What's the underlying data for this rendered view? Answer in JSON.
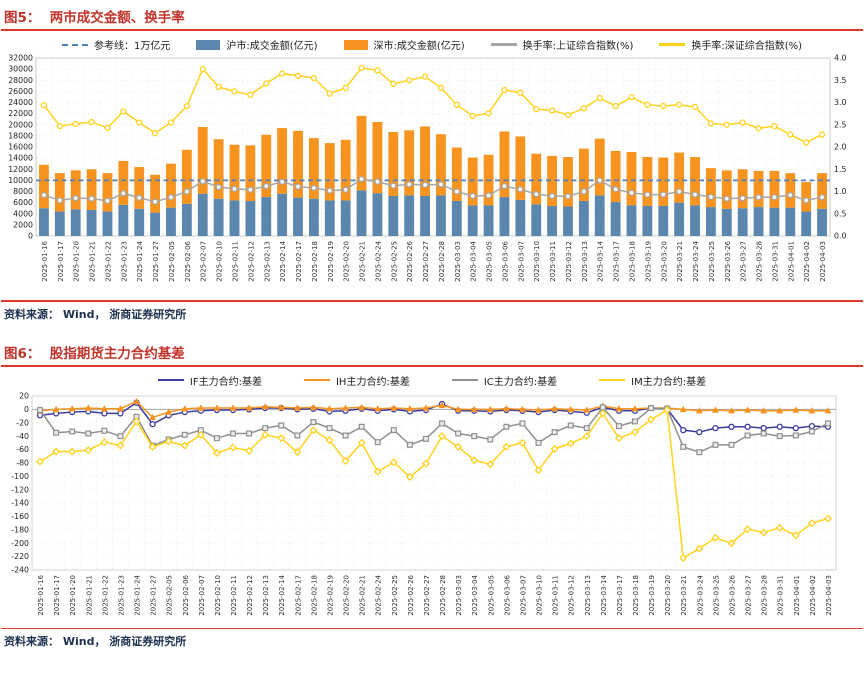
{
  "figure5": {
    "title": "图5：  两市成交金额、换手率",
    "source": "资料来源： Wind， 浙商证券研究所",
    "legend": [
      {
        "label": "参考线：1万亿元",
        "swatch": "dash",
        "color": "#4f81bd"
      },
      {
        "label": "沪市:成交金额(亿元)",
        "swatch": "box",
        "color": "#5b87ae"
      },
      {
        "label": "深市:成交金额(亿元)",
        "swatch": "box",
        "color": "#f79420"
      },
      {
        "label": "换手率:上证综合指数(%)",
        "swatch": "line",
        "color": "#a6a6a6"
      },
      {
        "label": "换手率:深证综合指数(%)",
        "swatch": "line",
        "color": "#ffd21e"
      }
    ]
  },
  "figure6": {
    "title": "图6：  股指期货主力合约基差",
    "source": "资料来源： Wind， 浙商证券研究所",
    "legend": [
      {
        "label": "IF主力合约:基差",
        "swatch": "line",
        "color": "#3c3c9e"
      },
      {
        "label": "IH主力合约:基差",
        "swatch": "line",
        "color": "#f79420"
      },
      {
        "label": "IC主力合约:基差",
        "swatch": "line",
        "color": "#909090"
      },
      {
        "label": "IM主力合约:基差",
        "swatch": "line",
        "color": "#ffd21e"
      }
    ]
  },
  "chart_data": [
    {
      "type": "bar",
      "title": "两市成交金额、换手率",
      "xlabel": "",
      "ylabel": "",
      "left_axis": {
        "min": 0,
        "max": 32000,
        "step": 2000
      },
      "right_axis": {
        "min": 0.0,
        "max": 4.0,
        "step": 0.5
      },
      "grid": true,
      "legend_position": "top",
      "reference_line": {
        "label": "参考线：1万亿元",
        "value": 10000,
        "color": "#4f81bd",
        "style": "dashed"
      },
      "categories": [
        "2025-01-16",
        "2025-01-17",
        "2025-01-20",
        "2025-01-21",
        "2025-01-22",
        "2025-01-23",
        "2025-01-24",
        "2025-01-27",
        "2025-02-05",
        "2025-02-06",
        "2025-02-07",
        "2025-02-10",
        "2025-02-11",
        "2025-02-12",
        "2025-02-13",
        "2025-02-14",
        "2025-02-17",
        "2025-02-18",
        "2025-02-19",
        "2025-02-20",
        "2025-02-21",
        "2025-02-24",
        "2025-02-25",
        "2025-02-26",
        "2025-02-27",
        "2025-02-28",
        "2025-03-03",
        "2025-03-04",
        "2025-03-05",
        "2025-03-06",
        "2025-03-07",
        "2025-03-10",
        "2025-03-11",
        "2025-03-12",
        "2025-03-13",
        "2025-03-14",
        "2025-03-17",
        "2025-03-18",
        "2025-03-19",
        "2025-03-20",
        "2025-03-21",
        "2025-03-24",
        "2025-03-25",
        "2025-03-26",
        "2025-03-27",
        "2025-03-28",
        "2025-03-31",
        "2025-04-01",
        "2025-04-02",
        "2025-04-03"
      ],
      "series": [
        {
          "id": "hu_bar",
          "name": "沪市:成交金额(亿元)",
          "type": "bar-stack",
          "axis": "left",
          "color": "#5b87ae",
          "values": [
            5000,
            4400,
            4800,
            4700,
            4400,
            5600,
            4900,
            4200,
            5100,
            5800,
            7600,
            6700,
            6400,
            6300,
            7000,
            7600,
            6900,
            6700,
            6400,
            6400,
            8200,
            7700,
            7200,
            7300,
            7200,
            7300,
            6300,
            5500,
            5500,
            7000,
            6500,
            5700,
            5400,
            5300,
            6300,
            7300,
            6100,
            5500,
            5400,
            5400,
            6000,
            5500,
            5200,
            4900,
            5000,
            5200,
            5100,
            5100,
            4400,
            4900
          ]
        },
        {
          "id": "sz_bar",
          "name": "深市:成交金额(亿元)",
          "type": "bar-stack",
          "axis": "left",
          "color": "#f79420",
          "values": [
            7800,
            6900,
            7000,
            7300,
            6900,
            7900,
            7500,
            6800,
            7900,
            9700,
            12000,
            10700,
            10000,
            10000,
            11200,
            11800,
            12000,
            10900,
            10300,
            10900,
            13400,
            12800,
            11500,
            11700,
            12500,
            11000,
            9600,
            8600,
            9100,
            11800,
            11400,
            9100,
            9000,
            8900,
            9400,
            10200,
            9200,
            9600,
            8800,
            8700,
            9000,
            8700,
            7000,
            6900,
            7000,
            6500,
            6600,
            6200,
            5300,
            6400
          ]
        },
        {
          "id": "sh_turn",
          "name": "换手率:上证综合指数(%)",
          "type": "line",
          "axis": "right",
          "color": "#a6a6a6",
          "marker": "circle",
          "values": [
            0.92,
            0.8,
            0.85,
            0.84,
            0.79,
            0.96,
            0.86,
            0.77,
            0.87,
            1.0,
            1.23,
            1.1,
            1.06,
            1.04,
            1.12,
            1.22,
            1.11,
            1.08,
            1.02,
            1.04,
            1.28,
            1.22,
            1.13,
            1.16,
            1.15,
            1.16,
            1.0,
            0.9,
            0.91,
            1.12,
            1.05,
            0.94,
            0.9,
            0.89,
            1.0,
            1.25,
            1.05,
            0.97,
            0.93,
            0.93,
            1.0,
            0.93,
            0.88,
            0.84,
            0.85,
            0.87,
            0.87,
            0.92,
            0.8,
            0.87
          ]
        },
        {
          "id": "szz_turn",
          "name": "换手率:深证综合指数(%)",
          "type": "line",
          "axis": "right",
          "color": "#ffd21e",
          "marker": "circle",
          "values": [
            2.94,
            2.47,
            2.52,
            2.56,
            2.43,
            2.8,
            2.55,
            2.31,
            2.55,
            2.92,
            3.75,
            3.35,
            3.25,
            3.17,
            3.43,
            3.65,
            3.6,
            3.55,
            3.2,
            3.33,
            3.78,
            3.72,
            3.42,
            3.5,
            3.58,
            3.33,
            2.95,
            2.7,
            2.76,
            3.28,
            3.22,
            2.85,
            2.82,
            2.72,
            2.87,
            3.1,
            2.92,
            3.12,
            2.95,
            2.92,
            2.95,
            2.9,
            2.53,
            2.5,
            2.55,
            2.42,
            2.47,
            2.28,
            2.1,
            2.28
          ]
        }
      ]
    },
    {
      "type": "line",
      "title": "股指期货主力合约基差",
      "xlabel": "",
      "ylabel": "",
      "y_axis": {
        "min": -240,
        "max": 20,
        "step": 20
      },
      "grid": true,
      "legend_position": "top",
      "categories": [
        "2025-01-16",
        "2025-01-17",
        "2025-01-20",
        "2025-01-21",
        "2025-01-22",
        "2025-01-23",
        "2025-01-24",
        "2025-01-27",
        "2025-02-05",
        "2025-02-06",
        "2025-02-07",
        "2025-02-10",
        "2025-02-11",
        "2025-02-12",
        "2025-02-13",
        "2025-02-14",
        "2025-02-17",
        "2025-02-18",
        "2025-02-19",
        "2025-02-20",
        "2025-02-21",
        "2025-02-24",
        "2025-02-25",
        "2025-02-26",
        "2025-02-27",
        "2025-02-28",
        "2025-03-03",
        "2025-03-04",
        "2025-03-05",
        "2025-03-06",
        "2025-03-07",
        "2025-03-10",
        "2025-03-11",
        "2025-03-12",
        "2025-03-13",
        "2025-03-14",
        "2025-03-17",
        "2025-03-18",
        "2025-03-19",
        "2025-03-20",
        "2025-03-21",
        "2025-03-24",
        "2025-03-25",
        "2025-03-26",
        "2025-03-27",
        "2025-03-28",
        "2025-03-31",
        "2025-04-01",
        "2025-04-02",
        "2025-04-03"
      ],
      "series": [
        {
          "id": "IF",
          "name": "IF主力合约:基差",
          "color": "#3c3c9e",
          "marker": "circle",
          "values": [
            -9,
            -6,
            -4,
            -3,
            -6,
            -6,
            10,
            -22,
            -9,
            -4,
            -2,
            -1,
            -1,
            0,
            2,
            2,
            0,
            1,
            -3,
            -2,
            1,
            -2,
            0,
            -3,
            -1,
            8,
            -2,
            -2,
            -3,
            -1,
            -2,
            -4,
            -1,
            -3,
            -5,
            3,
            -2,
            -2,
            2,
            1,
            -31,
            -34,
            -28,
            -26,
            -26,
            -28,
            -26,
            -28,
            -25,
            -26
          ]
        },
        {
          "id": "IH",
          "name": "IH主力合约:基差",
          "color": "#f79420",
          "marker": "triangle",
          "values": [
            -2,
            0,
            1,
            2,
            1,
            1,
            12,
            -12,
            -4,
            1,
            2,
            2,
            2,
            2,
            4,
            3,
            2,
            3,
            1,
            2,
            3,
            1,
            2,
            1,
            2,
            6,
            0,
            0,
            0,
            1,
            0,
            -1,
            1,
            0,
            -1,
            5,
            1,
            1,
            2,
            2,
            0,
            -2,
            -1,
            -2,
            -1,
            -2,
            -2,
            -1,
            -2,
            -2
          ]
        },
        {
          "id": "IC",
          "name": "IC主力合约:基差",
          "color": "#909090",
          "marker": "square",
          "values": [
            -1,
            -35,
            -33,
            -36,
            -32,
            -40,
            -11,
            -54,
            -45,
            -38,
            -31,
            -43,
            -36,
            -36,
            -28,
            -24,
            -39,
            -19,
            -28,
            -39,
            -26,
            -49,
            -31,
            -53,
            -44,
            -21,
            -36,
            -40,
            -45,
            -26,
            -21,
            -50,
            -34,
            -24,
            -28,
            3,
            -25,
            -18,
            2,
            1,
            -56,
            -64,
            -53,
            -53,
            -39,
            -36,
            -40,
            -39,
            -33,
            -21
          ]
        },
        {
          "id": "IM",
          "name": "IM主力合约:基差",
          "color": "#ffd21e",
          "marker": "diamond",
          "values": [
            -78,
            -63,
            -63,
            -61,
            -49,
            -54,
            -18,
            -56,
            -48,
            -54,
            -38,
            -65,
            -57,
            -62,
            -38,
            -43,
            -64,
            -31,
            -46,
            -77,
            -50,
            -93,
            -79,
            -101,
            -81,
            -40,
            -56,
            -76,
            -82,
            -56,
            -50,
            -91,
            -59,
            -51,
            -40,
            -6,
            -43,
            -34,
            -15,
            -1,
            -222,
            -208,
            -192,
            -200,
            -179,
            -184,
            -177,
            -188,
            -170,
            -163
          ]
        }
      ]
    }
  ],
  "colors": {
    "title_red": "#c0342b",
    "rule_red": "#e03a2f",
    "source_navy": "#1d3150",
    "shanghai_blue": "#5b87ae",
    "shenzhen_orange": "#f79420",
    "sh_turnover_gray": "#a6a6a6",
    "sz_turnover_yellow": "#ffd21e",
    "reference_blue": "#4f81bd",
    "if_navy": "#3c3c9e",
    "ic_gray": "#909090"
  }
}
